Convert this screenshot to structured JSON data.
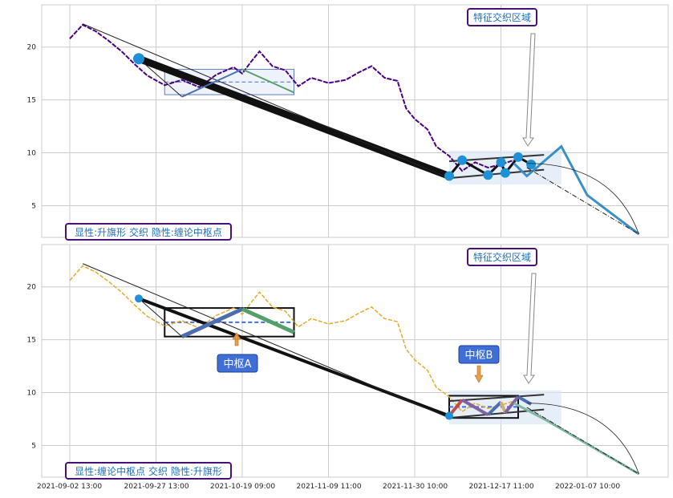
{
  "chart_data": [
    {
      "type": "line",
      "title": "",
      "xlabel": "",
      "ylabel": "",
      "ylim": [
        2,
        24
      ],
      "yticks": [
        5,
        10,
        15,
        20
      ],
      "grid": true,
      "x_categories": [
        "2021-09-02 13:00",
        "2021-09-27 13:00",
        "2021-10-19 09:00",
        "2021-11-09 11:00",
        "2021-11-30 10:00",
        "2021-12-17 11:00",
        "2022-01-07 10:00"
      ],
      "series": [
        {
          "style": "price-line",
          "color": "#4b0082",
          "values": [
            [
              0,
              20.8
            ],
            [
              0.15,
              22.1
            ],
            [
              0.3,
              21.5
            ],
            [
              0.45,
              20.6
            ],
            [
              0.6,
              19.6
            ],
            [
              0.75,
              18.4
            ],
            [
              0.9,
              17.3
            ],
            [
              1.1,
              16.4
            ],
            [
              1.3,
              16.9
            ],
            [
              1.5,
              16.2
            ],
            [
              1.7,
              17.4
            ],
            [
              1.9,
              18.1
            ],
            [
              2.0,
              17.5
            ],
            [
              2.1,
              18.6
            ],
            [
              2.2,
              19.6
            ],
            [
              2.35,
              18.2
            ],
            [
              2.5,
              17.8
            ],
            [
              2.65,
              16.3
            ],
            [
              2.8,
              17.1
            ],
            [
              3.0,
              16.6
            ],
            [
              3.2,
              16.9
            ],
            [
              3.35,
              17.6
            ],
            [
              3.5,
              18.2
            ],
            [
              3.65,
              17.1
            ],
            [
              3.8,
              16.8
            ],
            [
              3.9,
              14.2
            ],
            [
              4.0,
              13.2
            ],
            [
              4.15,
              12.2
            ],
            [
              4.25,
              10.6
            ],
            [
              4.4,
              9.7
            ],
            [
              4.55,
              8.3
            ],
            [
              4.7,
              9.1
            ],
            [
              4.85,
              8.6
            ],
            [
              5.0,
              8.9
            ],
            [
              5.15,
              9.3
            ]
          ]
        },
        {
          "style": "projection",
          "color": "#3a8fc7",
          "values": [
            [
              5.15,
              9.0
            ],
            [
              5.3,
              7.8
            ],
            [
              5.7,
              10.6
            ],
            [
              6.0,
              6.0
            ],
            [
              6.6,
              2.3
            ]
          ]
        }
      ],
      "zhongshu": [
        {
          "x0": 1.1,
          "x1": 2.6,
          "y0": 15.5,
          "y1": 17.9
        }
      ],
      "annotations": [
        "特征交织区域",
        "显性:升旗形 交织 隐性:缠论中枢点"
      ]
    },
    {
      "type": "line",
      "title": "",
      "xlabel": "",
      "ylabel": "",
      "ylim": [
        2,
        24
      ],
      "yticks": [
        5,
        10,
        15,
        20
      ],
      "grid": true,
      "x_categories": [
        "2021-09-02 13:00",
        "2021-09-27 13:00",
        "2021-10-19 09:00",
        "2021-11-09 11:00",
        "2021-11-30 10:00",
        "2021-12-17 11:00",
        "2022-01-07 10:00"
      ],
      "series": [
        {
          "style": "price-line",
          "color": "#e8a92b",
          "values": [
            [
              0,
              20.6
            ],
            [
              0.15,
              22.0
            ],
            [
              0.3,
              21.4
            ],
            [
              0.45,
              20.5
            ],
            [
              0.6,
              19.5
            ],
            [
              0.75,
              18.3
            ],
            [
              0.9,
              17.2
            ],
            [
              1.1,
              16.3
            ],
            [
              1.3,
              16.8
            ],
            [
              1.5,
              16.1
            ],
            [
              1.7,
              17.3
            ],
            [
              1.9,
              18.0
            ],
            [
              2.0,
              17.4
            ],
            [
              2.1,
              18.5
            ],
            [
              2.2,
              19.5
            ],
            [
              2.35,
              18.1
            ],
            [
              2.5,
              17.7
            ],
            [
              2.65,
              16.2
            ],
            [
              2.8,
              17.0
            ],
            [
              3.0,
              16.5
            ],
            [
              3.2,
              16.8
            ],
            [
              3.35,
              17.5
            ],
            [
              3.5,
              18.1
            ],
            [
              3.65,
              17.0
            ],
            [
              3.8,
              16.7
            ],
            [
              3.9,
              14.1
            ],
            [
              4.0,
              13.1
            ],
            [
              4.15,
              12.1
            ],
            [
              4.25,
              10.5
            ],
            [
              4.4,
              9.6
            ],
            [
              4.55,
              8.2
            ],
            [
              4.7,
              9.0
            ],
            [
              4.85,
              8.5
            ],
            [
              5.0,
              8.8
            ],
            [
              5.15,
              9.2
            ]
          ]
        }
      ],
      "zhongshu": [
        {
          "name": "中枢A",
          "x0": 1.1,
          "x1": 2.6,
          "y0": 15.3,
          "y1": 18.0
        },
        {
          "name": "中枢B",
          "x0": 4.4,
          "x1": 5.2,
          "y0": 7.6,
          "y1": 9.7
        }
      ],
      "annotations": [
        "特征交织区域",
        "显性:缠论中枢点 交织 隐性:升旗形"
      ]
    }
  ],
  "labels": {
    "top_feature": "特征交织区域",
    "top_caption": "显性:升旗形 交织 隐性:缠论中枢点",
    "bottom_feature": "特征交织区域",
    "bottom_caption": "显性:缠论中枢点 交织 隐性:升旗形",
    "zs_a": "中枢A",
    "zs_b": "中枢B"
  }
}
